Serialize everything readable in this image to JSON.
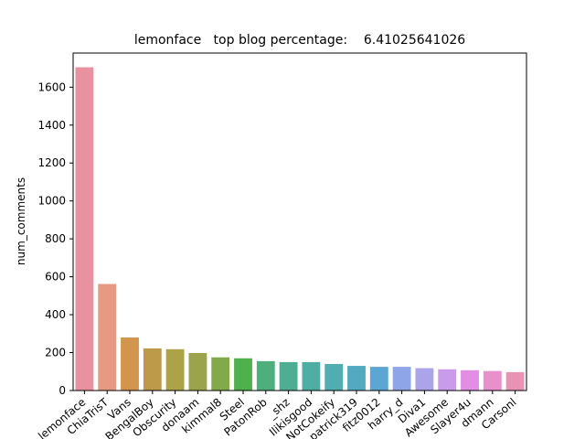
{
  "chart_data": {
    "type": "bar",
    "title": "lemonface   top blog percentage:    6.41025641026",
    "xlabel": "",
    "ylabel": "num_comments",
    "ylim": [
      0,
      1780
    ],
    "yticks": [
      0,
      200,
      400,
      600,
      800,
      1000,
      1200,
      1400,
      1600
    ],
    "grid": false,
    "categories": [
      "lemonface",
      "ChiaTrisT",
      "Vans",
      "BengalBoy",
      "Obscurity",
      "donaam",
      "kimmal8",
      "Steel",
      "PatonRob",
      "_shz",
      "Ilikisgood",
      "NotCokeify",
      "patrick319",
      "fitz0012",
      "harry_d",
      "Diva1",
      "Awesome",
      "Slayer4u",
      "dmann",
      "Carsonl"
    ],
    "values": [
      1705,
      562,
      280,
      222,
      218,
      198,
      175,
      170,
      155,
      150,
      150,
      140,
      130,
      125,
      125,
      118,
      112,
      107,
      103,
      97
    ],
    "colors": [
      "#e8929f",
      "#e59a81",
      "#d3944d",
      "#bd9a4a",
      "#aca349",
      "#9ba44a",
      "#82aa4b",
      "#4fb04e",
      "#4faf7c",
      "#4eae93",
      "#4faea3",
      "#50adb0",
      "#53aac0",
      "#5ba6d3",
      "#8ea6e8",
      "#aca4eb",
      "#c99ceb",
      "#e18ee4",
      "#e890cc",
      "#e893b4"
    ]
  }
}
